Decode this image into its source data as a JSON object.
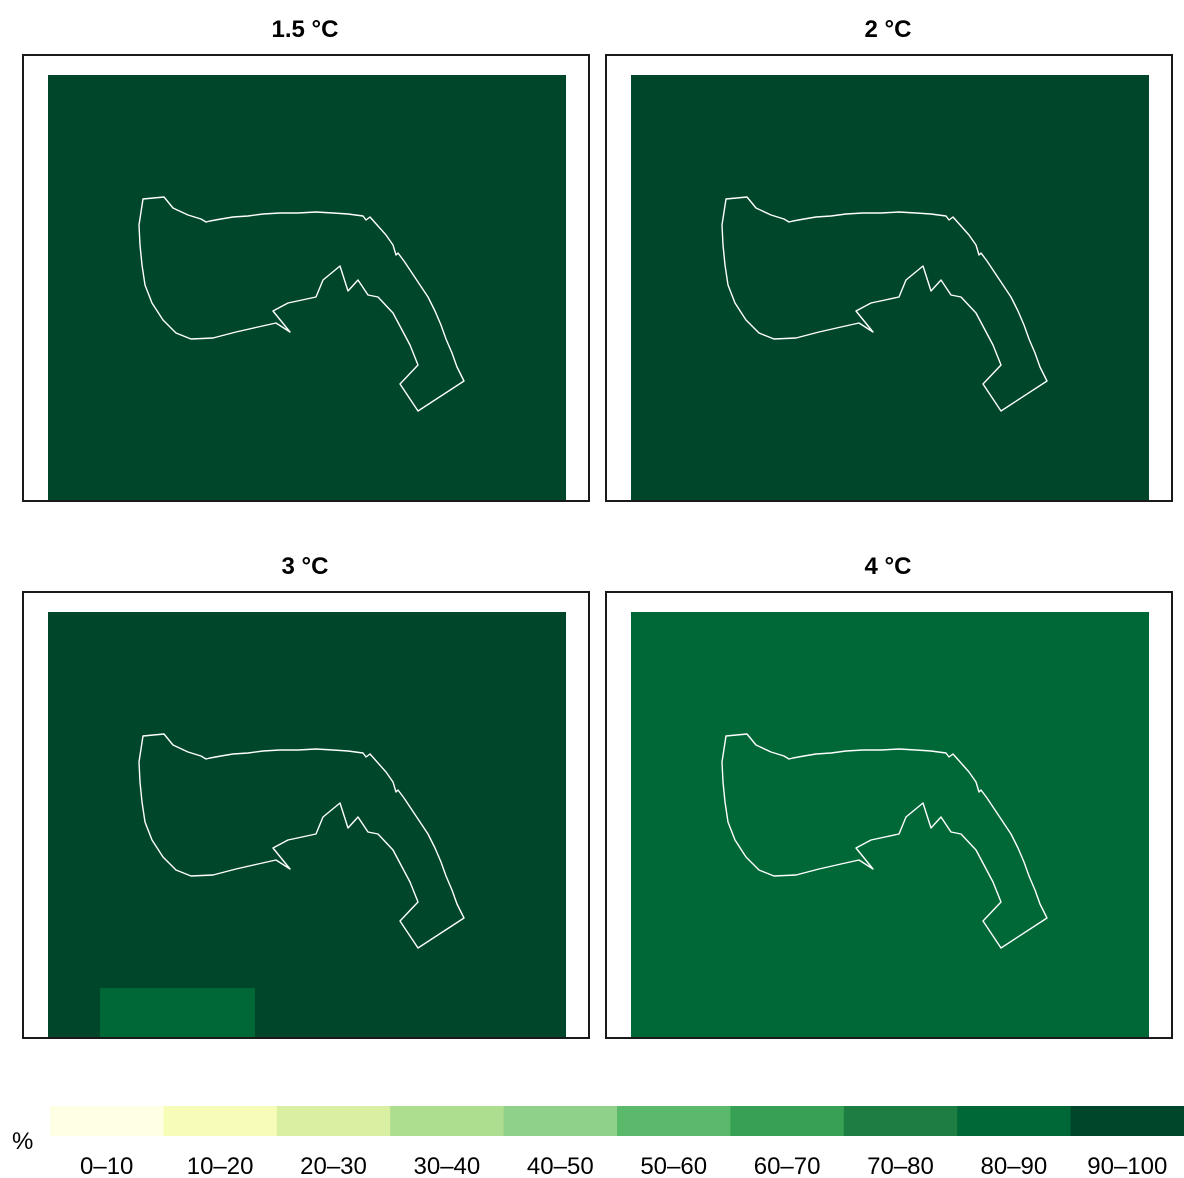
{
  "chart_data": [
    {
      "type": "heatmap",
      "title": "1.5 °C",
      "cells": [
        {
          "category": "90–100"
        }
      ]
    },
    {
      "type": "heatmap",
      "title": "2 °C",
      "cells": [
        {
          "category": "90–100"
        }
      ]
    },
    {
      "type": "heatmap",
      "title": "3 °C",
      "cells": [
        {
          "category": "90–100"
        },
        {
          "category": "80–90",
          "region": "lower-left"
        }
      ]
    },
    {
      "type": "heatmap",
      "title": "4 °C",
      "cells": [
        {
          "category": "80–90"
        }
      ]
    }
  ],
  "legend": {
    "unit": "%",
    "bins": [
      {
        "label": "0–10",
        "color": "#ffffe5"
      },
      {
        "label": "10–20",
        "color": "#f7fcb9"
      },
      {
        "label": "20–30",
        "color": "#d9f0a3"
      },
      {
        "label": "30–40",
        "color": "#addd8e"
      },
      {
        "label": "40–50",
        "color": "#8fd18a"
      },
      {
        "label": "50–60",
        "color": "#5ab96a"
      },
      {
        "label": "60–70",
        "color": "#38a055"
      },
      {
        "label": "70–80",
        "color": "#1d7d42"
      },
      {
        "label": "80–90",
        "color": "#006837"
      },
      {
        "label": "90–100",
        "color": "#00462a"
      }
    ]
  }
}
